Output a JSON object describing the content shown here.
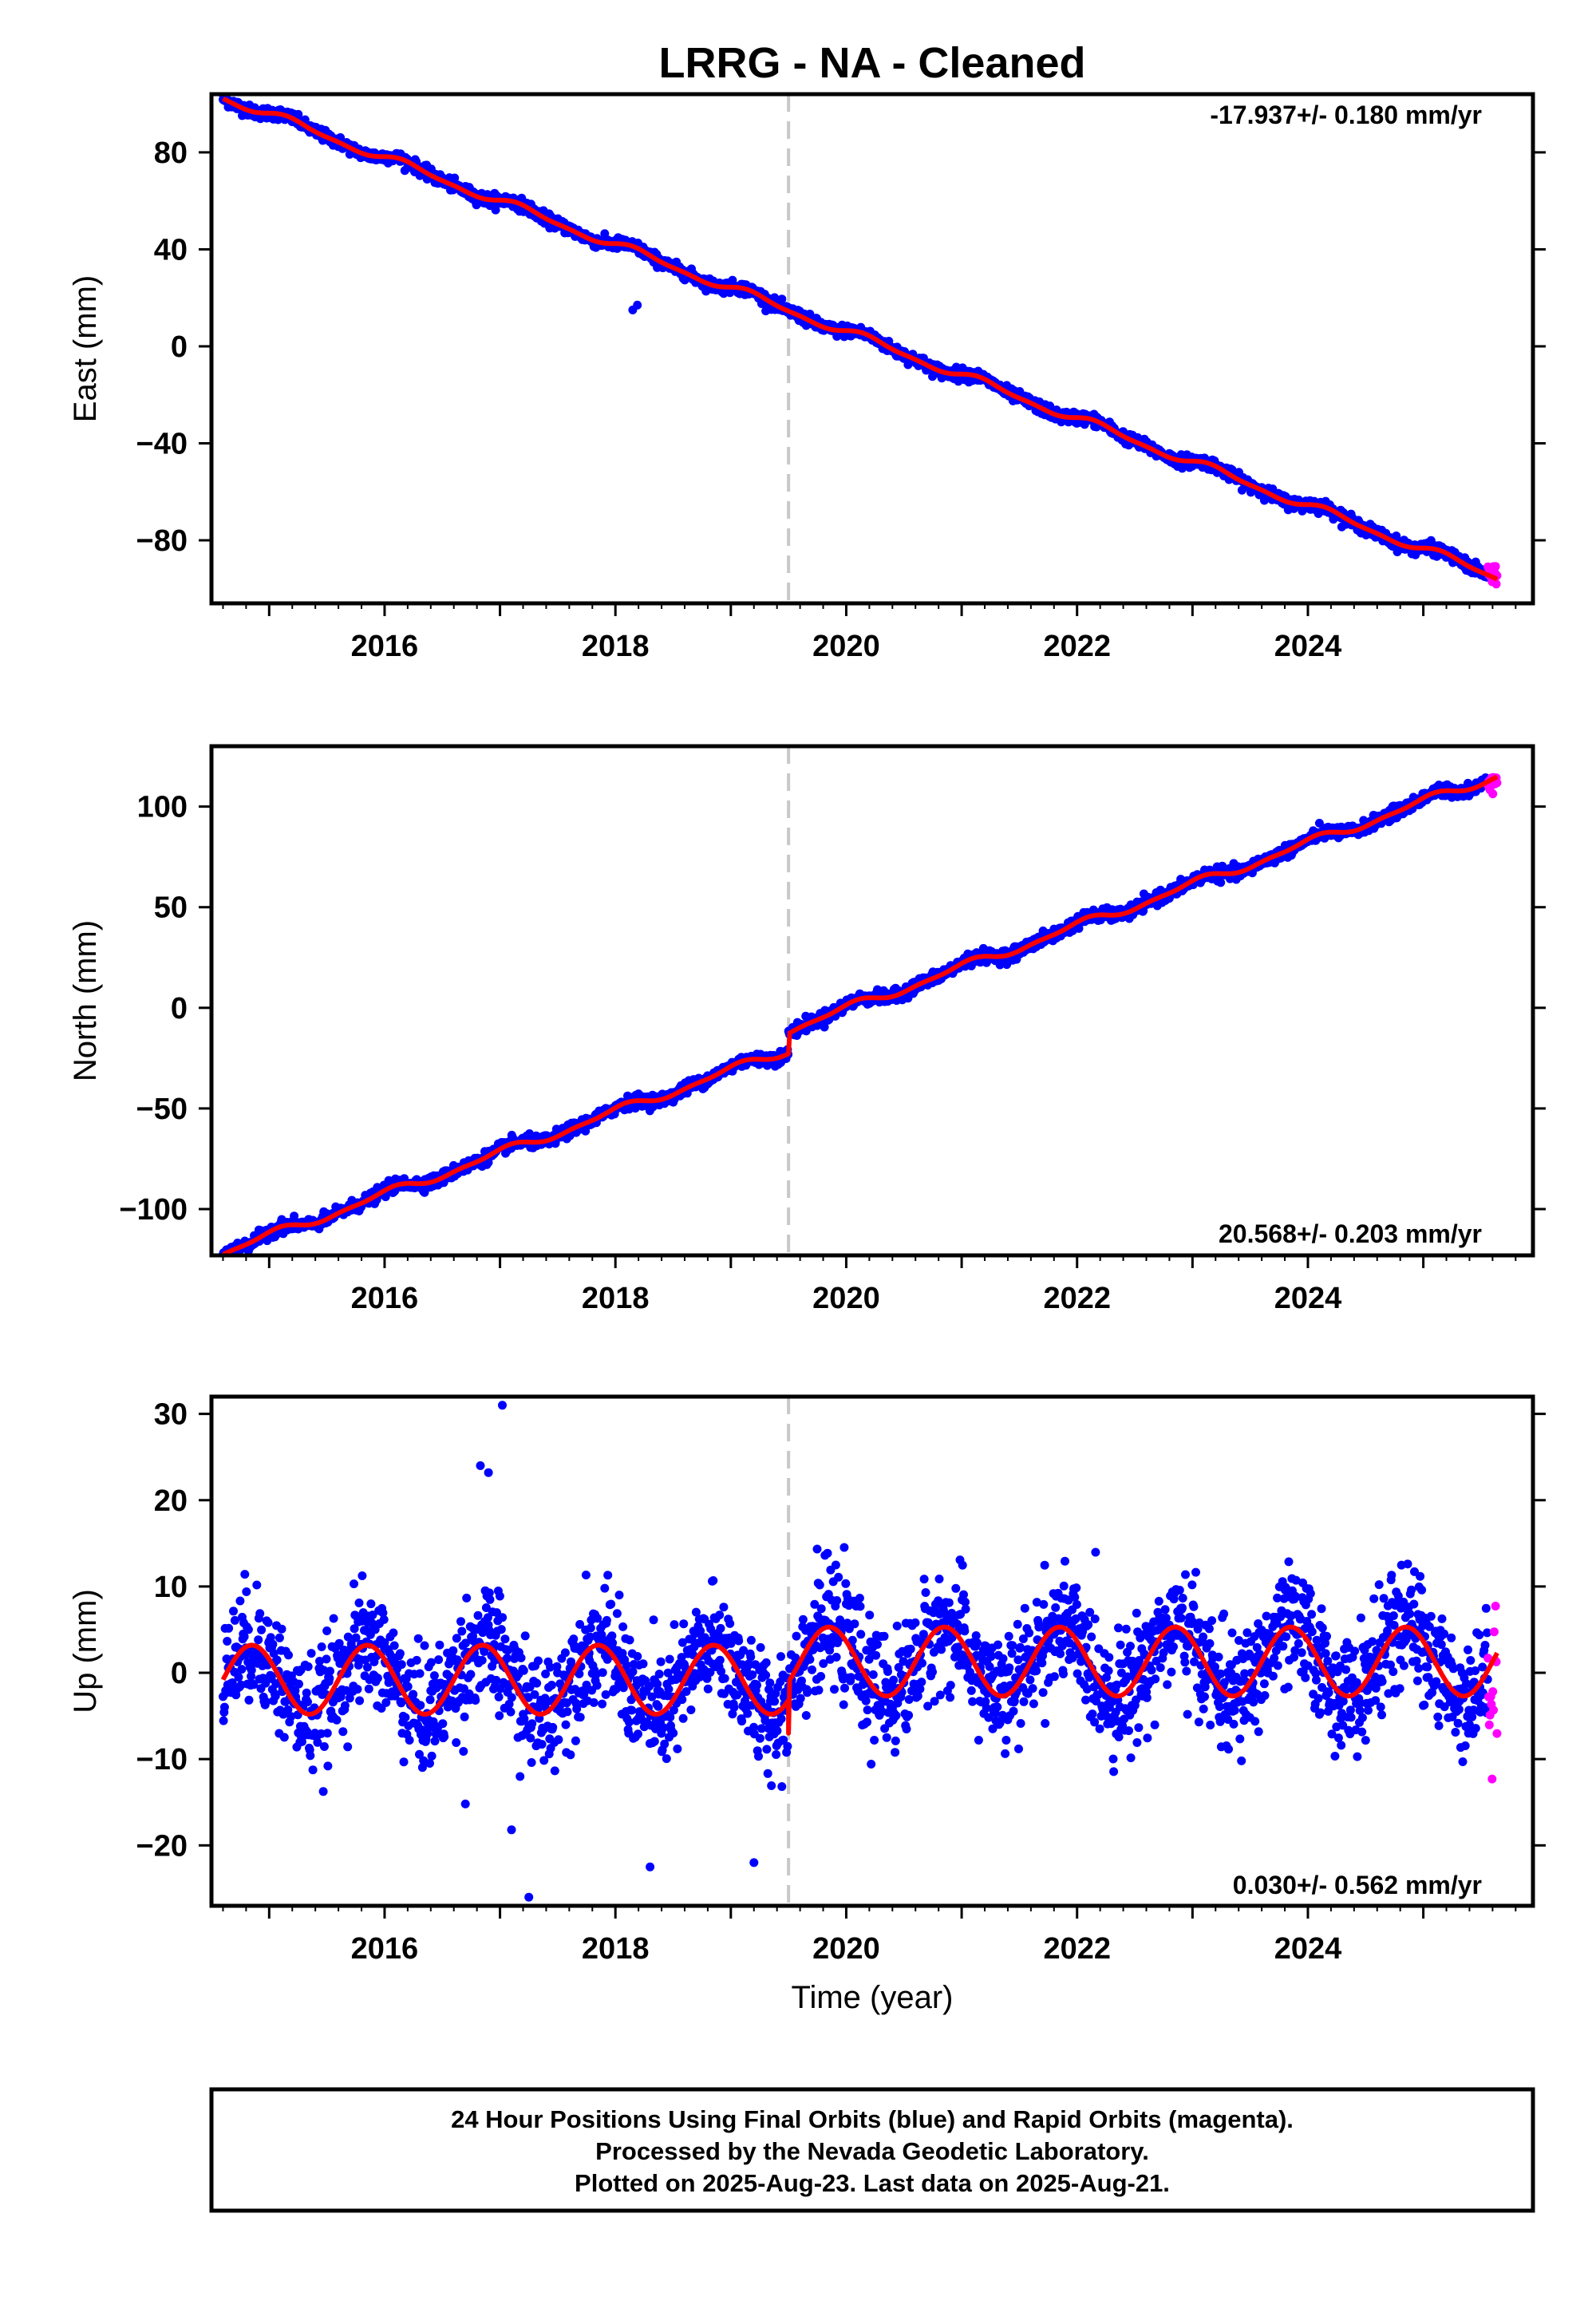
{
  "title": "LRRG  - NA - Cleaned",
  "x_axis_label": "Time (year)",
  "x_tick_labels": [
    "2016",
    "2018",
    "2020",
    "2022",
    "2024"
  ],
  "caption": {
    "line1": "24 Hour Positions Using Final Orbits (blue) and Rapid Orbits (magenta).",
    "line2": "Processed by the Nevada Geodetic Laboratory.",
    "line3": "Plotted on 2025-Aug-23. Last data on 2025-Aug-21."
  },
  "colors": {
    "final_orbits": "#0000ff",
    "rapid_orbits": "#ff00ff",
    "model_fit": "#ff0000",
    "equipment_change_line": "#c8c8c8"
  },
  "chart_data": [
    {
      "type": "scatter",
      "id": "east",
      "ylabel": "East (mm)",
      "rate_text": "-17.937+/- 0.180 mm/yr",
      "xlim": [
        2014.5,
        2025.95
      ],
      "ylim": [
        -106,
        104
      ],
      "yticks": [
        -80,
        -40,
        0,
        40,
        80
      ],
      "ytick_labels": [
        "−80",
        "−40",
        "0",
        "40",
        "80"
      ],
      "grid": false,
      "vline_x": 2019.5,
      "data_start": 2014.6,
      "data_end": 2025.64,
      "rapid_start": 2025.56,
      "trend": {
        "rate": -17.937,
        "value_at_2020": 6.0
      },
      "offsets": [],
      "seasonal": {
        "annual_amp": 1.6,
        "annual_phase": 0.3,
        "semiannual_amp": 0.6
      },
      "noise_sd": 1.2,
      "outliers": [
        [
          2018.15,
          15
        ],
        [
          2018.19,
          17
        ]
      ],
      "fit_points": [
        [
          2014.6,
          96.5
        ],
        [
          2016.0,
          79.0
        ],
        [
          2018.0,
          36.0
        ],
        [
          2019.5,
          9.5
        ],
        [
          2020.0,
          6.0
        ],
        [
          2022.0,
          -30.0
        ],
        [
          2024.0,
          -66.5
        ],
        [
          2025.64,
          -97.5
        ]
      ]
    },
    {
      "type": "scatter",
      "id": "north",
      "ylabel": "North (mm)",
      "rate_text": "20.568+/- 0.203 mm/yr",
      "xlim": [
        2014.5,
        2025.95
      ],
      "ylim": [
        -123,
        130
      ],
      "yticks": [
        -100,
        -50,
        0,
        50,
        100
      ],
      "ytick_labels": [
        "−100",
        "−50",
        "0",
        "50",
        "100"
      ],
      "grid": false,
      "vline_x": 2019.5,
      "data_start": 2014.6,
      "data_end": 2025.64,
      "rapid_start": 2025.56,
      "trend": {
        "rate": 20.568,
        "value_at_2020": -0.5
      },
      "offsets": [
        [
          2019.5,
          10.0
        ]
      ],
      "seasonal": {
        "annual_amp": 2.0,
        "annual_phase": 1.4,
        "semiannual_amp": 0.8
      },
      "noise_sd": 1.5,
      "outliers": [],
      "fit_points": [
        [
          2014.6,
          -116.0
        ],
        [
          2016.0,
          -94.0
        ],
        [
          2018.0,
          -52.0
        ],
        [
          2019.5,
          -14.5
        ],
        [
          2019.51,
          -4.5
        ],
        [
          2020.0,
          -0.5
        ],
        [
          2022.0,
          40.5
        ],
        [
          2024.0,
          81.5
        ],
        [
          2025.64,
          120.0
        ]
      ]
    },
    {
      "type": "scatter",
      "id": "up",
      "ylabel": "Up (mm)",
      "rate_text": "0.030+/- 0.562 mm/yr",
      "xlim": [
        2014.5,
        2025.95
      ],
      "ylim": [
        -27,
        32
      ],
      "yticks": [
        -20,
        -10,
        0,
        10,
        20,
        30
      ],
      "ytick_labels": [
        "−20",
        "−10",
        "0",
        "10",
        "20",
        "30"
      ],
      "grid": false,
      "vline_x": 2019.5,
      "data_start": 2014.6,
      "data_end": 2025.64,
      "rapid_start": 2025.56,
      "trend": {
        "rate": 0.03,
        "value_at_2020": 0.0
      },
      "segments": [
        {
          "from": 2014.6,
          "to": 2019.5,
          "mean": -0.8,
          "annual_amp": 4.0,
          "annual_peak": 0.85
        },
        {
          "from": 2019.5,
          "to": 2025.7,
          "mean": 1.3,
          "annual_amp": 4.0,
          "annual_peak": 0.85
        }
      ],
      "step_at_vline": [
        2019.5,
        -7.0
      ],
      "noise_sd": 3.3,
      "outliers": [
        [
          2017.02,
          31
        ],
        [
          2016.83,
          24
        ],
        [
          2016.9,
          23.2
        ],
        [
          2017.25,
          -26
        ],
        [
          2018.3,
          -22.5
        ],
        [
          2019.2,
          -22
        ],
        [
          2016.7,
          -15.2
        ],
        [
          2017.1,
          -18.2
        ]
      ],
      "fit_points": [
        [
          2014.6,
          -1.5
        ],
        [
          2014.85,
          3.0
        ],
        [
          2015.35,
          -4.7
        ],
        [
          2015.85,
          3.0
        ],
        [
          2019.5,
          -4.8
        ],
        [
          2019.85,
          5.2
        ],
        [
          2020.35,
          -2.8
        ],
        [
          2024.85,
          5.2
        ],
        [
          2025.64,
          1.2
        ]
      ]
    }
  ]
}
